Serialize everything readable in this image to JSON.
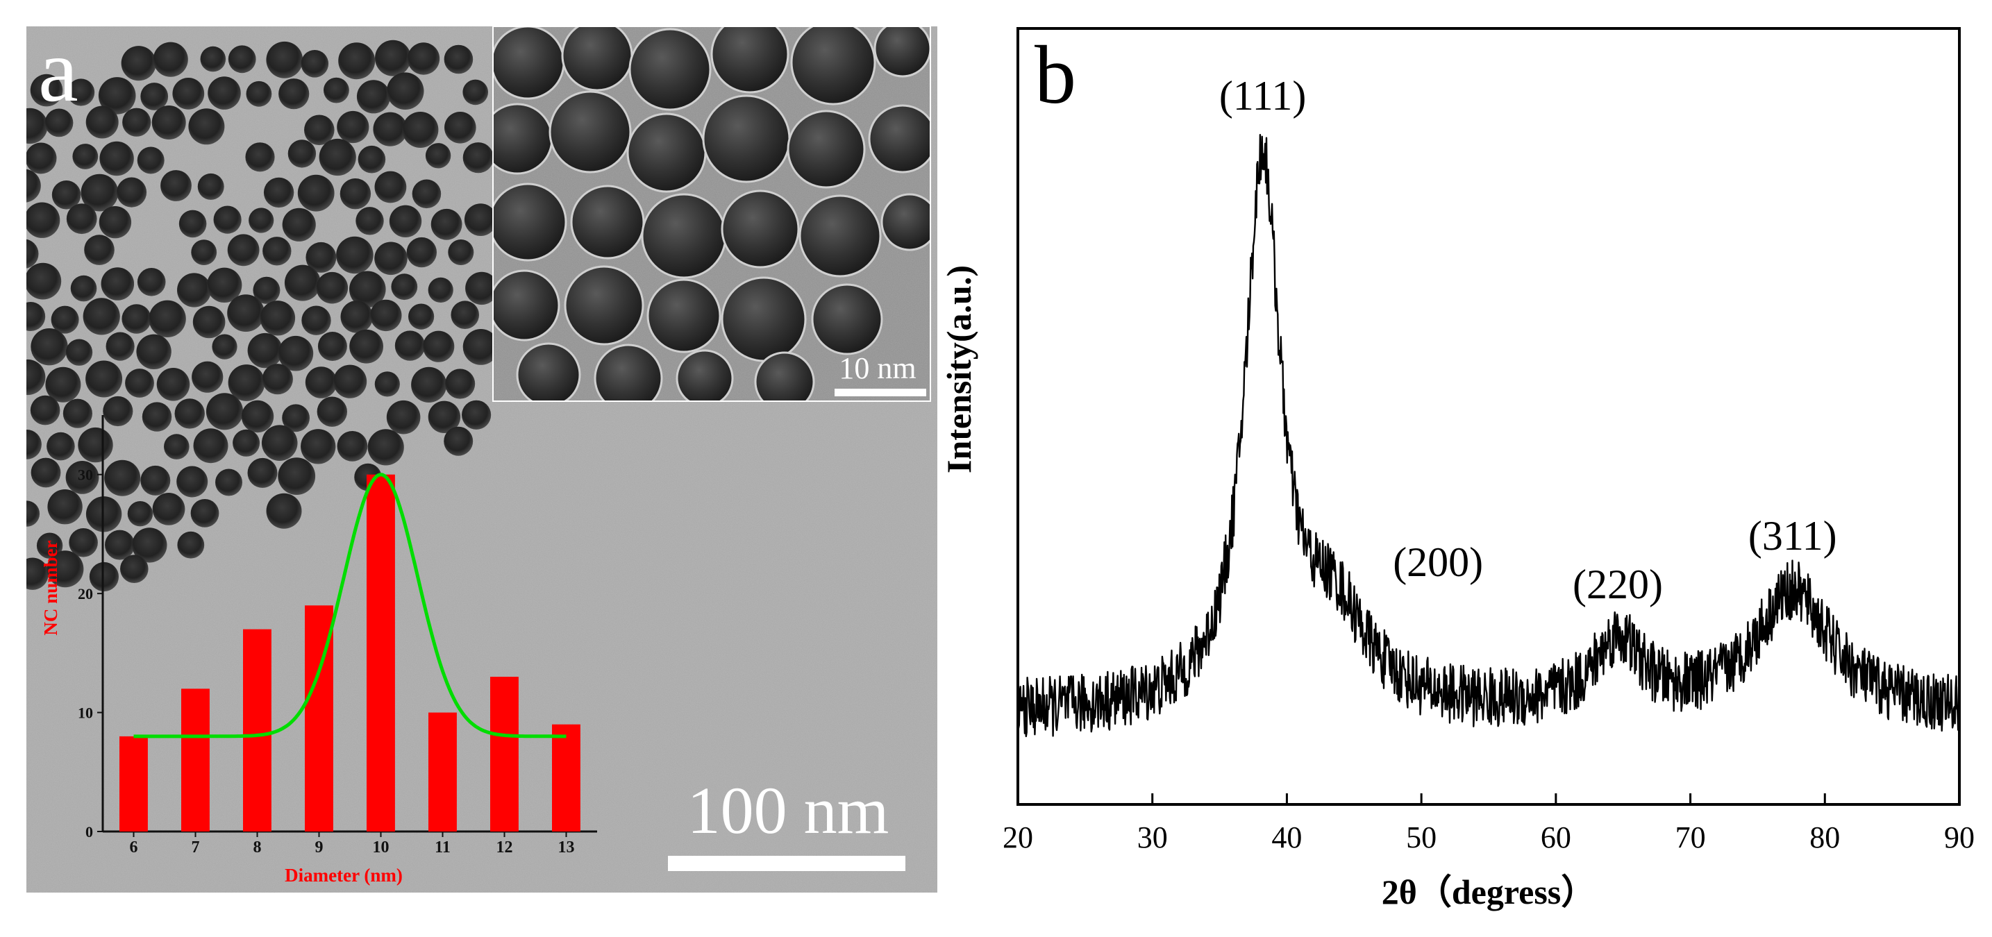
{
  "figure": {
    "panel_a_label": "a",
    "panel_b_label": "b",
    "tem_scale_bar": "100 nm",
    "inset_scale_bar": "10 nm"
  },
  "chart_data": [
    {
      "id": "size-distribution",
      "type": "bar",
      "title": "",
      "xlabel": "Diameter (nm)",
      "ylabel": "NC number",
      "categories": [
        "6",
        "7",
        "8",
        "9",
        "10",
        "11",
        "12",
        "13"
      ],
      "values": [
        8,
        12,
        17,
        19,
        30,
        10,
        13,
        9
      ],
      "ylim": [
        0,
        35
      ],
      "yticks": [
        0,
        10,
        20,
        30
      ],
      "fit": {
        "type": "gaussian",
        "center": 10,
        "sigma": 0.6,
        "baseline": 8,
        "peak": 30
      },
      "colors": {
        "bars": "#ff0000",
        "fit": "#00dd00",
        "labels": "#ff0000"
      }
    },
    {
      "id": "xrd-pattern",
      "type": "line",
      "title": "",
      "xlabel": "2θ（degress）",
      "ylabel": "Intensity(a.u.)",
      "xlim": [
        20,
        90
      ],
      "ylim": [
        0,
        100
      ],
      "xticks": [
        20,
        30,
        40,
        50,
        60,
        70,
        80,
        90
      ],
      "baseline": 12,
      "noise_amplitude": 4,
      "peaks": [
        {
          "label": "(111)",
          "center": 38.2,
          "height": 72,
          "width": 1.6
        },
        {
          "label": "(200)",
          "center": 43.5,
          "height": 12,
          "width": 3.0
        },
        {
          "label": "(220)",
          "center": 64.6,
          "height": 9,
          "width": 2.2
        },
        {
          "label": "(311)",
          "center": 77.6,
          "height": 16,
          "width": 3.4
        }
      ],
      "colors": {
        "line": "#000000"
      }
    }
  ]
}
